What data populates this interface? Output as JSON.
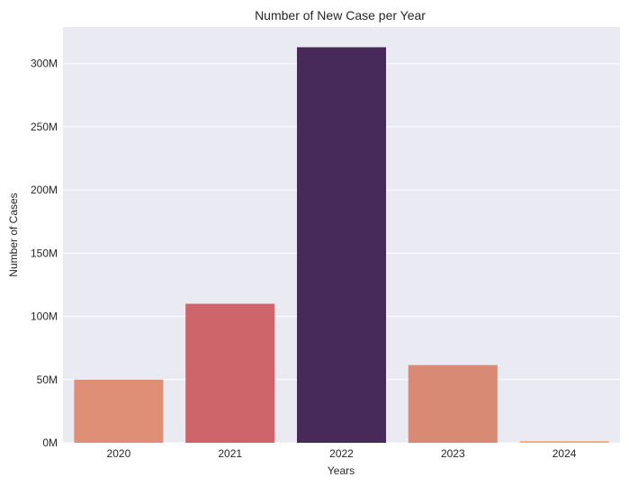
{
  "chart_data": {
    "type": "bar",
    "title": "Number of New Case per Year",
    "xlabel": "Years",
    "ylabel": "Number of Cases",
    "categories": [
      "2020",
      "2021",
      "2022",
      "2023",
      "2024"
    ],
    "values": [
      50000000,
      110000000,
      313000000,
      61500000,
      1300000
    ],
    "colors": [
      "#de8f76",
      "#cd656a",
      "#482a5a",
      "#d98a75",
      "#f4a877"
    ],
    "ylim": [
      0,
      329000000
    ],
    "yticks": [
      0,
      50000000,
      100000000,
      150000000,
      200000000,
      250000000,
      300000000
    ],
    "ytick_labels": [
      "0M",
      "50M",
      "100M",
      "150M",
      "200M",
      "250M",
      "300M"
    ],
    "grid": true,
    "plot_background": "#eaeaf2"
  }
}
